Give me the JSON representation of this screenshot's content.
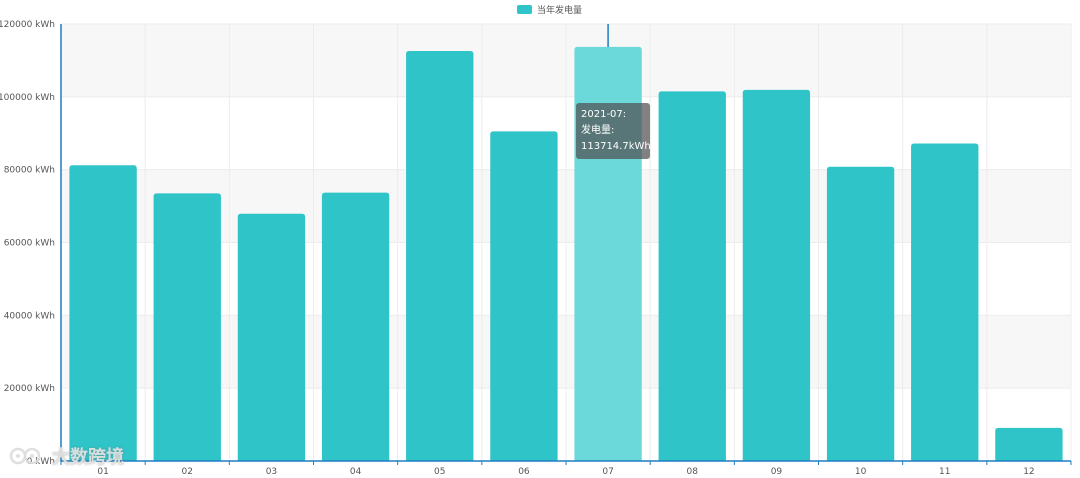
{
  "legend": {
    "label": "当年发电量",
    "color": "#2ec4c8"
  },
  "tooltip": {
    "line1": "2021-07:",
    "line2": "发电量:",
    "line3": "113714.7kWh"
  },
  "watermark": {
    "text": "大数跨境"
  },
  "colors": {
    "bar": "#2ec4c8",
    "bar_highlight": "#6bd8d9",
    "axis": "#1e7fc4",
    "grid": "#ececec",
    "band": "#f7f7f7",
    "label": "#555555"
  },
  "chart_data": {
    "type": "bar",
    "categories": [
      "01",
      "02",
      "03",
      "04",
      "05",
      "06",
      "07",
      "08",
      "09",
      "10",
      "11",
      "12"
    ],
    "series": [
      {
        "name": "当年发电量",
        "values": [
          81200,
          73500,
          67900,
          73700,
          112600,
          90500,
          113714.7,
          101500,
          101900,
          80800,
          87200,
          9100
        ]
      }
    ],
    "ylim": [
      0,
      120000
    ],
    "yticks": [
      {
        "value": 0,
        "label": "0 kWh"
      },
      {
        "value": 20000,
        "label": "20000 kWh"
      },
      {
        "value": 40000,
        "label": "40000 kWh"
      },
      {
        "value": 60000,
        "label": "60000 kWh"
      },
      {
        "value": 80000,
        "label": "80000 kWh"
      },
      {
        "value": 100000,
        "label": "100000 kWh"
      },
      {
        "value": 120000,
        "label": "120000 kWh"
      }
    ],
    "highlighted_category": "07",
    "grid": true,
    "legend_position": "top-center"
  }
}
